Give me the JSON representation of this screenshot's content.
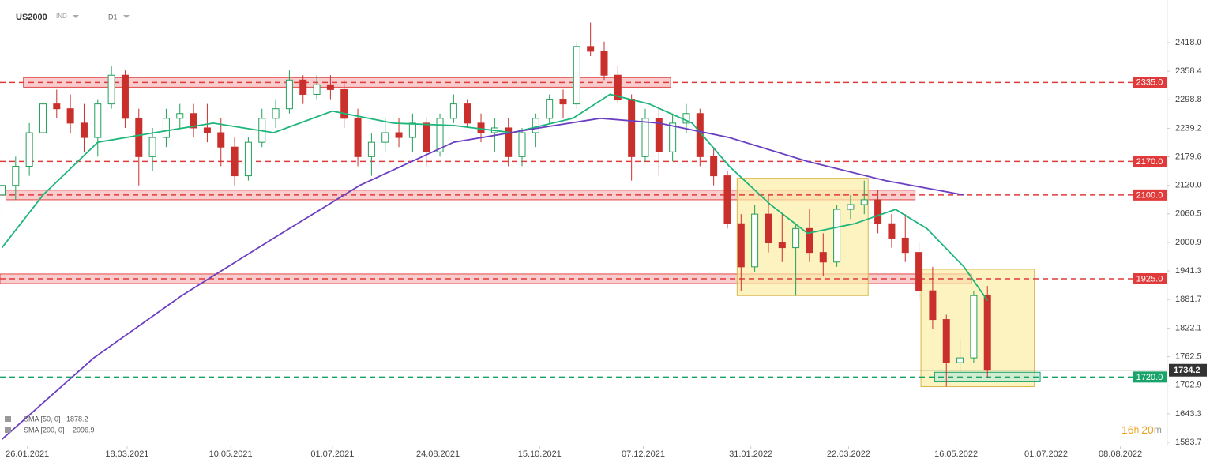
{
  "chart_data": {
    "type": "candlestick",
    "symbol": "US2000",
    "instrument_type": "IND",
    "interval": "D1",
    "timer": [
      "16",
      "h",
      "20",
      "m"
    ],
    "up_color": "#22a05a",
    "down_color": "#c9302c",
    "xlim": [
      "2021-01-12",
      "2022-09-01"
    ],
    "ylim": [
      1575.5,
      2507
    ],
    "yticks": [
      {
        "value": 2418,
        "label": "2418.0"
      },
      2358.4,
      2298.8,
      2239.2,
      2179.6,
      {
        "value": 2120,
        "label": "2120.0"
      },
      2060.5,
      2000.9,
      1941.3,
      1881.7,
      1822.1,
      1762.5,
      1702.9,
      1643.3,
      1583.7
    ],
    "xticks": [
      {
        "value": "2021-01-26",
        "label": "26.01.2021"
      },
      {
        "value": "2021-03-18",
        "label": "18.03.2021"
      },
      {
        "value": "2021-05-10",
        "label": "10.05.2021"
      },
      {
        "value": "2021-07-01",
        "label": "01.07.2021"
      },
      {
        "value": "2021-08-24",
        "label": "24.08.2021"
      },
      {
        "value": "2021-10-15",
        "label": "15.10.2021"
      },
      {
        "value": "2021-12-07",
        "label": "07.12.2021"
      },
      {
        "value": "2022-01-31",
        "label": "31.01.2022"
      },
      {
        "value": "2022-03-22",
        "label": "22.03.2022"
      },
      {
        "value": "2022-05-16",
        "label": "16.05.2022"
      },
      {
        "value": "2022-07-01",
        "label": "01.07.2022"
      },
      {
        "value": "2022-08-08",
        "label": "08.08.2022"
      }
    ],
    "x": [
      "2021-01-13",
      "2021-01-20",
      "2021-01-27",
      "2021-02-03",
      "2021-02-10",
      "2021-02-17",
      "2021-02-24",
      "2021-03-03",
      "2021-03-10",
      "2021-03-17",
      "2021-03-24",
      "2021-03-31",
      "2021-04-07",
      "2021-04-14",
      "2021-04-21",
      "2021-04-28",
      "2021-05-05",
      "2021-05-12",
      "2021-05-19",
      "2021-05-26",
      "2021-06-02",
      "2021-06-09",
      "2021-06-16",
      "2021-06-23",
      "2021-06-30",
      "2021-07-07",
      "2021-07-14",
      "2021-07-21",
      "2021-07-28",
      "2021-08-04",
      "2021-08-11",
      "2021-08-18",
      "2021-08-25",
      "2021-09-01",
      "2021-09-08",
      "2021-09-15",
      "2021-09-22",
      "2021-09-29",
      "2021-10-06",
      "2021-10-13",
      "2021-10-20",
      "2021-10-27",
      "2021-11-03",
      "2021-11-10",
      "2021-11-17",
      "2021-11-24",
      "2021-12-01",
      "2021-12-08",
      "2021-12-15",
      "2021-12-22",
      "2021-12-29",
      "2022-01-05",
      "2022-01-12",
      "2022-01-19",
      "2022-01-26",
      "2022-02-02",
      "2022-02-09",
      "2022-02-16",
      "2022-02-23",
      "2022-03-02",
      "2022-03-09",
      "2022-03-16",
      "2022-03-23",
      "2022-03-30",
      "2022-04-06",
      "2022-04-13",
      "2022-04-20",
      "2022-04-27",
      "2022-05-04",
      "2022-05-11",
      "2022-05-18",
      "2022-05-25",
      "2022-06-01"
    ],
    "open": [
      2100,
      2120,
      2160,
      2230,
      2290,
      2280,
      2250,
      2220,
      2290,
      2350,
      2260,
      2180,
      2220,
      2260,
      2270,
      2240,
      2230,
      2200,
      2140,
      2210,
      2260,
      2280,
      2340,
      2310,
      2330,
      2320,
      2260,
      2180,
      2210,
      2230,
      2220,
      2250,
      2190,
      2260,
      2290,
      2250,
      2230,
      2240,
      2180,
      2230,
      2260,
      2300,
      2290,
      2410,
      2400,
      2350,
      2300,
      2180,
      2260,
      2190,
      2250,
      2270,
      2180,
      2140,
      2040,
      1950,
      2060,
      2000,
      1990,
      2030,
      1980,
      1960,
      2070,
      2080,
      2090,
      2040,
      2010,
      1980,
      1900,
      1840,
      1750,
      1760,
      1890
    ],
    "high": [
      2140,
      2180,
      2250,
      2300,
      2320,
      2310,
      2290,
      2300,
      2370,
      2360,
      2280,
      2240,
      2280,
      2290,
      2290,
      2290,
      2260,
      2220,
      2220,
      2280,
      2300,
      2360,
      2350,
      2350,
      2350,
      2340,
      2280,
      2230,
      2260,
      2260,
      2270,
      2260,
      2270,
      2310,
      2300,
      2270,
      2260,
      2260,
      2240,
      2270,
      2310,
      2320,
      2420,
      2460,
      2420,
      2370,
      2310,
      2280,
      2280,
      2270,
      2290,
      2280,
      2200,
      2150,
      2060,
      2080,
      2100,
      2060,
      2040,
      2070,
      2020,
      2080,
      2100,
      2130,
      2110,
      2060,
      2060,
      2000,
      1950,
      1850,
      1800,
      1900,
      1910
    ],
    "low": [
      2060,
      2090,
      2140,
      2220,
      2260,
      2230,
      2190,
      2180,
      2280,
      2240,
      2120,
      2150,
      2200,
      2240,
      2220,
      2210,
      2160,
      2120,
      2130,
      2200,
      2240,
      2270,
      2290,
      2300,
      2300,
      2240,
      2160,
      2140,
      2190,
      2200,
      2190,
      2160,
      2180,
      2250,
      2240,
      2210,
      2190,
      2160,
      2160,
      2200,
      2250,
      2260,
      2280,
      2390,
      2340,
      2290,
      2130,
      2170,
      2140,
      2170,
      2230,
      2160,
      2120,
      2030,
      1900,
      1940,
      1980,
      1960,
      1890,
      1960,
      1930,
      1950,
      2050,
      2060,
      2020,
      1990,
      1960,
      1880,
      1820,
      1700,
      1730,
      1750,
      1720
    ],
    "close": [
      2120,
      2160,
      2230,
      2290,
      2280,
      2250,
      2220,
      2290,
      2350,
      2260,
      2180,
      2220,
      2260,
      2270,
      2240,
      2230,
      2200,
      2140,
      2210,
      2260,
      2280,
      2340,
      2310,
      2330,
      2320,
      2260,
      2180,
      2210,
      2230,
      2220,
      2250,
      2190,
      2260,
      2290,
      2250,
      2230,
      2240,
      2180,
      2230,
      2260,
      2300,
      2290,
      2410,
      2400,
      2350,
      2300,
      2180,
      2260,
      2190,
      2250,
      2270,
      2180,
      2140,
      2040,
      1950,
      2060,
      2000,
      1990,
      2030,
      1980,
      1960,
      2070,
      2080,
      2090,
      2040,
      2010,
      1980,
      1900,
      1840,
      1750,
      1760,
      1890,
      1734.2
    ],
    "indicators": [
      {
        "name": "SMA [50, 0]",
        "value": 1878.2,
        "color": "#1db57a",
        "x": [
          "2021-01-13",
          "2021-02-03",
          "2021-03-03",
          "2021-04-01",
          "2021-05-01",
          "2021-06-01",
          "2021-07-01",
          "2021-08-01",
          "2021-09-01",
          "2021-10-01",
          "2021-11-01",
          "2021-11-20",
          "2021-12-10",
          "2022-01-01",
          "2022-01-20",
          "2022-02-10",
          "2022-03-01",
          "2022-03-25",
          "2022-04-15",
          "2022-05-01",
          "2022-05-20",
          "2022-06-01"
        ],
        "values": [
          1990,
          2100,
          2210,
          2230,
          2250,
          2230,
          2275,
          2250,
          2245,
          2230,
          2260,
          2310,
          2290,
          2250,
          2160,
          2080,
          2020,
          2040,
          2070,
          2030,
          1950,
          1880
        ]
      },
      {
        "name": "SMA [200, 0]",
        "value": 2096.9,
        "color": "#6a3fc1",
        "x": [
          "2021-01-13",
          "2021-03-01",
          "2021-04-15",
          "2021-06-01",
          "2021-07-15",
          "2021-09-01",
          "2021-10-15",
          "2021-11-15",
          "2021-12-15",
          "2022-01-20",
          "2022-03-01",
          "2022-04-10",
          "2022-05-20"
        ],
        "values": [
          1590,
          1760,
          1890,
          2010,
          2120,
          2210,
          2240,
          2260,
          2250,
          2220,
          2170,
          2130,
          2100
        ]
      }
    ],
    "levels": [
      {
        "value": 2335,
        "label": "2335.0",
        "color": "#e03a3a"
      },
      {
        "value": 2170,
        "label": "2170.0",
        "color": "#e03a3a"
      },
      {
        "value": 2100,
        "label": "2100.0",
        "color": "#e03a3a"
      },
      {
        "value": 1925,
        "label": "1925.0",
        "color": "#e03a3a"
      },
      {
        "value": 1720,
        "label": "1720.0",
        "color": "#18a36a"
      }
    ],
    "last_price": 1734.2,
    "zones": [
      {
        "x": [
          "2021-01-24",
          "2021-12-21"
        ],
        "y": [
          2325,
          2345
        ],
        "color": "#f6b8b8",
        "stroke": "#e04848"
      },
      {
        "x": [
          "2021-01-15",
          "2022-04-25"
        ],
        "y": [
          2090,
          2110
        ],
        "color": "#f6b8b8",
        "stroke": "#e04848"
      },
      {
        "x": [
          "2021-01-12",
          "2022-05-24"
        ],
        "y": [
          1915,
          1935
        ],
        "color": "#f6b8b8",
        "stroke": "#e04848"
      },
      {
        "x": [
          "2022-01-24",
          "2022-04-01"
        ],
        "y": [
          1890,
          2135
        ],
        "color": "#fbeea6",
        "stroke": "#d9b84a"
      },
      {
        "x": [
          "2022-04-28",
          "2022-06-25"
        ],
        "y": [
          1700,
          1945
        ],
        "color": "#fbeea6",
        "stroke": "#d9b84a"
      },
      {
        "x": [
          "2022-05-05",
          "2022-06-28"
        ],
        "y": [
          1710,
          1730
        ],
        "color": "#bfe8d4",
        "stroke": "#18a36a"
      }
    ]
  }
}
